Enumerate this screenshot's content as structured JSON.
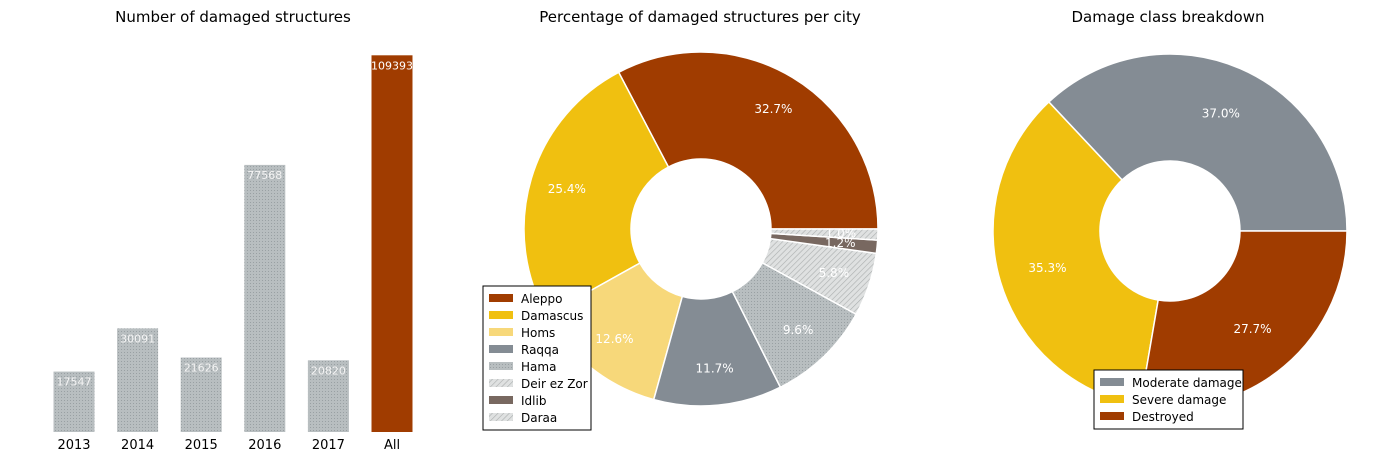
{
  "chart_data": [
    {
      "type": "bar",
      "title": "Number of damaged structures",
      "categories": [
        "2013",
        "2014",
        "2015",
        "2016",
        "2017",
        "All"
      ],
      "values": [
        17547,
        30091,
        21626,
        77568,
        20820,
        109393
      ],
      "data_labels": [
        "17547",
        "30091",
        "21626",
        "77568",
        "20820",
        "109393"
      ],
      "ylim": [
        0,
        115000
      ],
      "colors": [
        "#b8bec0",
        "#b8bec0",
        "#b8bec0",
        "#b8bec0",
        "#b8bec0",
        "#a03c00"
      ],
      "grid": false
    },
    {
      "type": "pie",
      "title": "Percentage of damaged structures per city",
      "donut": true,
      "legend_position": "lower-left",
      "slices": [
        {
          "name": "Aleppo",
          "value": 32.7,
          "label": "32.7%",
          "color": "#a03c00"
        },
        {
          "name": "Damascus",
          "value": 25.4,
          "label": "25.4%",
          "color": "#f0c010"
        },
        {
          "name": "Homs",
          "value": 12.6,
          "label": "12.6%",
          "color": "#f7d87a"
        },
        {
          "name": "Raqqa",
          "value": 11.7,
          "label": "11.7%",
          "color": "#848c94"
        },
        {
          "name": "Hama",
          "value": 9.6,
          "label": "9.6%",
          "color": "#b8bcbc"
        },
        {
          "name": "Deir ez Zor",
          "value": 5.8,
          "label": "5.8%",
          "color": "#d2d5d5"
        },
        {
          "name": "Idlib",
          "value": 1.2,
          "label": "1.2%",
          "color": "#786860"
        },
        {
          "name": "Daraa",
          "value": 1.0,
          "label": "1.0%",
          "color": "#e4e6e6"
        }
      ]
    },
    {
      "type": "pie",
      "title": "Damage class breakdown",
      "donut": true,
      "legend_position": "lower-center",
      "slices": [
        {
          "name": "Moderate damage",
          "value": 37.0,
          "label": "37.0%",
          "color": "#848c94"
        },
        {
          "name": "Severe damage",
          "value": 35.3,
          "label": "35.3%",
          "color": "#f0c010"
        },
        {
          "name": "Destroyed",
          "value": 27.7,
          "label": "27.7%",
          "color": "#a03c00"
        }
      ]
    }
  ]
}
